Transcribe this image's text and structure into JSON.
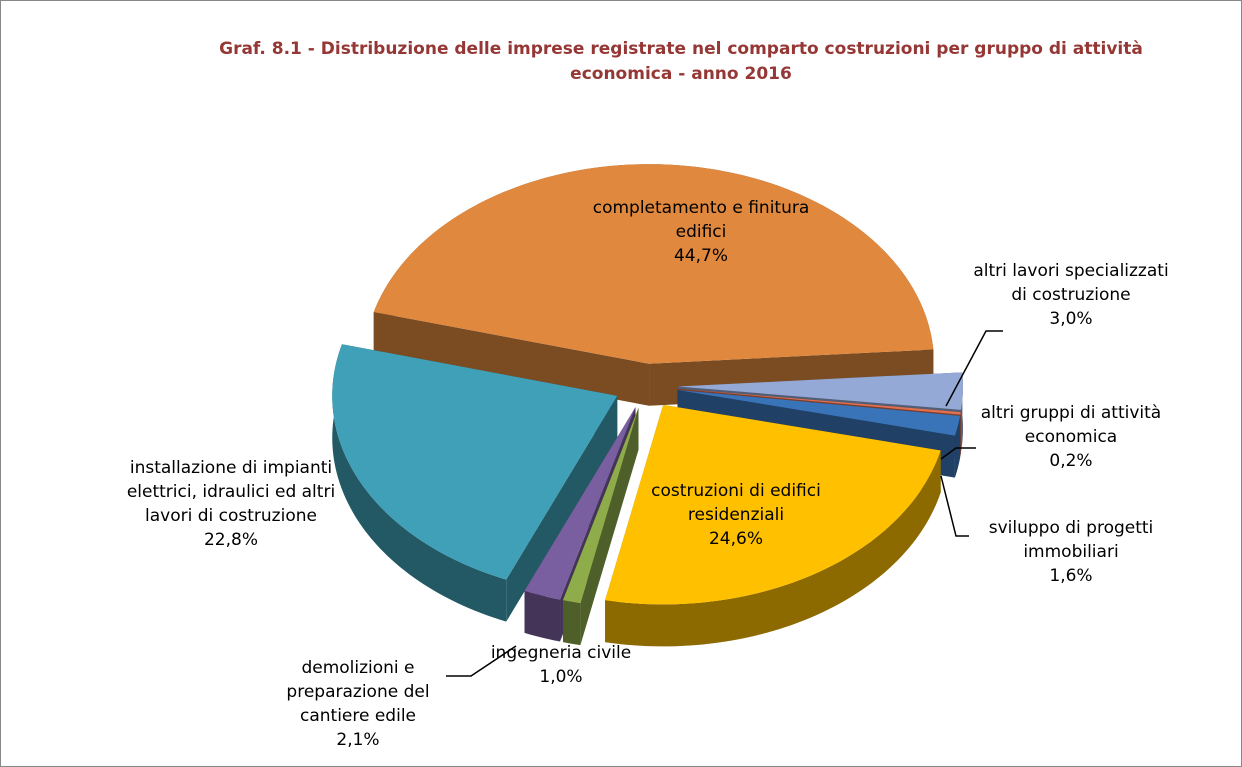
{
  "chart_data": {
    "type": "pie3d",
    "title": "Graf. 8.1 - Distribuzione delle imprese registrate nel comparto costruzioni per gruppo di attività economica - anno 2016",
    "categories": [
      "completamento e finitura edifici",
      "altri lavori specializzati di costruzione",
      "altri gruppi di attività economica",
      "sviluppo di progetti immobiliari",
      "costruzioni di edifici residenziali",
      "ingegneria civile",
      "demolizioni e preparazione del cantiere edile",
      "installazione di impianti elettrici, idraulici ed altri lavori di costruzione"
    ],
    "values": [
      44.7,
      3.0,
      0.2,
      1.6,
      24.6,
      1.0,
      2.1,
      22.8
    ],
    "value_labels": [
      "44,7%",
      "3,0%",
      "0,2%",
      "1,6%",
      "24,6%",
      "1,0%",
      "2,1%",
      "22,8%"
    ],
    "colors": [
      "#e0883e",
      "#95a9d6",
      "#e07050",
      "#3a74b8",
      "#ffc000",
      "#8fac4a",
      "#7a5fa0",
      "#3fa0b8"
    ]
  }
}
